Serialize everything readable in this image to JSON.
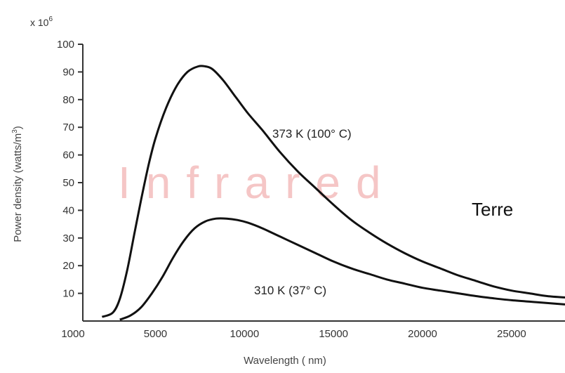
{
  "chart_data": {
    "type": "line",
    "multiplier_label": "x 10",
    "multiplier_exponent": "6",
    "xlabel": "Wavelength ( nm)",
    "ylabel": "Power density (watts/m",
    "ylabel_exponent": "3",
    "ylabel_close": ")",
    "xlim": [
      1000,
      28000
    ],
    "ylim": [
      0,
      100
    ],
    "x_ticks": [
      1000,
      5000,
      10000,
      15000,
      20000,
      25000
    ],
    "y_ticks": [
      10,
      20,
      30,
      40,
      50,
      60,
      70,
      80,
      90,
      100
    ],
    "grid": false,
    "series": [
      {
        "name": "373 K (100° C)",
        "x": [
          2000,
          2600,
          3000,
          3400,
          3800,
          4200,
          4600,
          5000,
          5600,
          6200,
          6800,
          7400,
          7800,
          8200,
          8800,
          9500,
          10200,
          11000,
          12000,
          13000,
          14000,
          15000,
          16000,
          17000,
          18000,
          19000,
          20000,
          21000,
          22000,
          23000,
          24000,
          25000,
          26000,
          27000,
          28000
        ],
        "y": [
          1.5,
          3,
          8,
          18,
          31,
          44,
          56,
          66,
          77,
          85,
          90,
          92,
          92,
          91,
          87,
          81,
          75,
          69,
          61,
          54,
          48,
          42,
          36.5,
          32,
          28,
          24.5,
          21.5,
          19,
          16.5,
          14.5,
          12.5,
          11,
          10,
          9,
          8.5
        ]
      },
      {
        "name": "310 K (37° C)",
        "x": [
          3000,
          3600,
          4200,
          4800,
          5400,
          6000,
          6600,
          7200,
          7800,
          8400,
          9000,
          9600,
          10200,
          11000,
          12000,
          13000,
          14000,
          15000,
          16000,
          17000,
          18000,
          19000,
          20000,
          21000,
          22000,
          23000,
          24000,
          25000,
          26000,
          27000,
          28000
        ],
        "y": [
          0.5,
          2,
          5,
          10,
          16,
          23,
          29,
          33.5,
          36,
          37,
          37,
          36.5,
          35.5,
          33.5,
          30.5,
          27.5,
          24.5,
          21.5,
          19,
          17,
          15,
          13.5,
          12,
          11,
          10,
          9,
          8.2,
          7.5,
          7,
          6.5,
          6
        ]
      }
    ],
    "annotations": [
      "373 K (100° C)",
      "310 K (37° C)"
    ],
    "watermark": "Infrared",
    "side_label": "Terre"
  }
}
